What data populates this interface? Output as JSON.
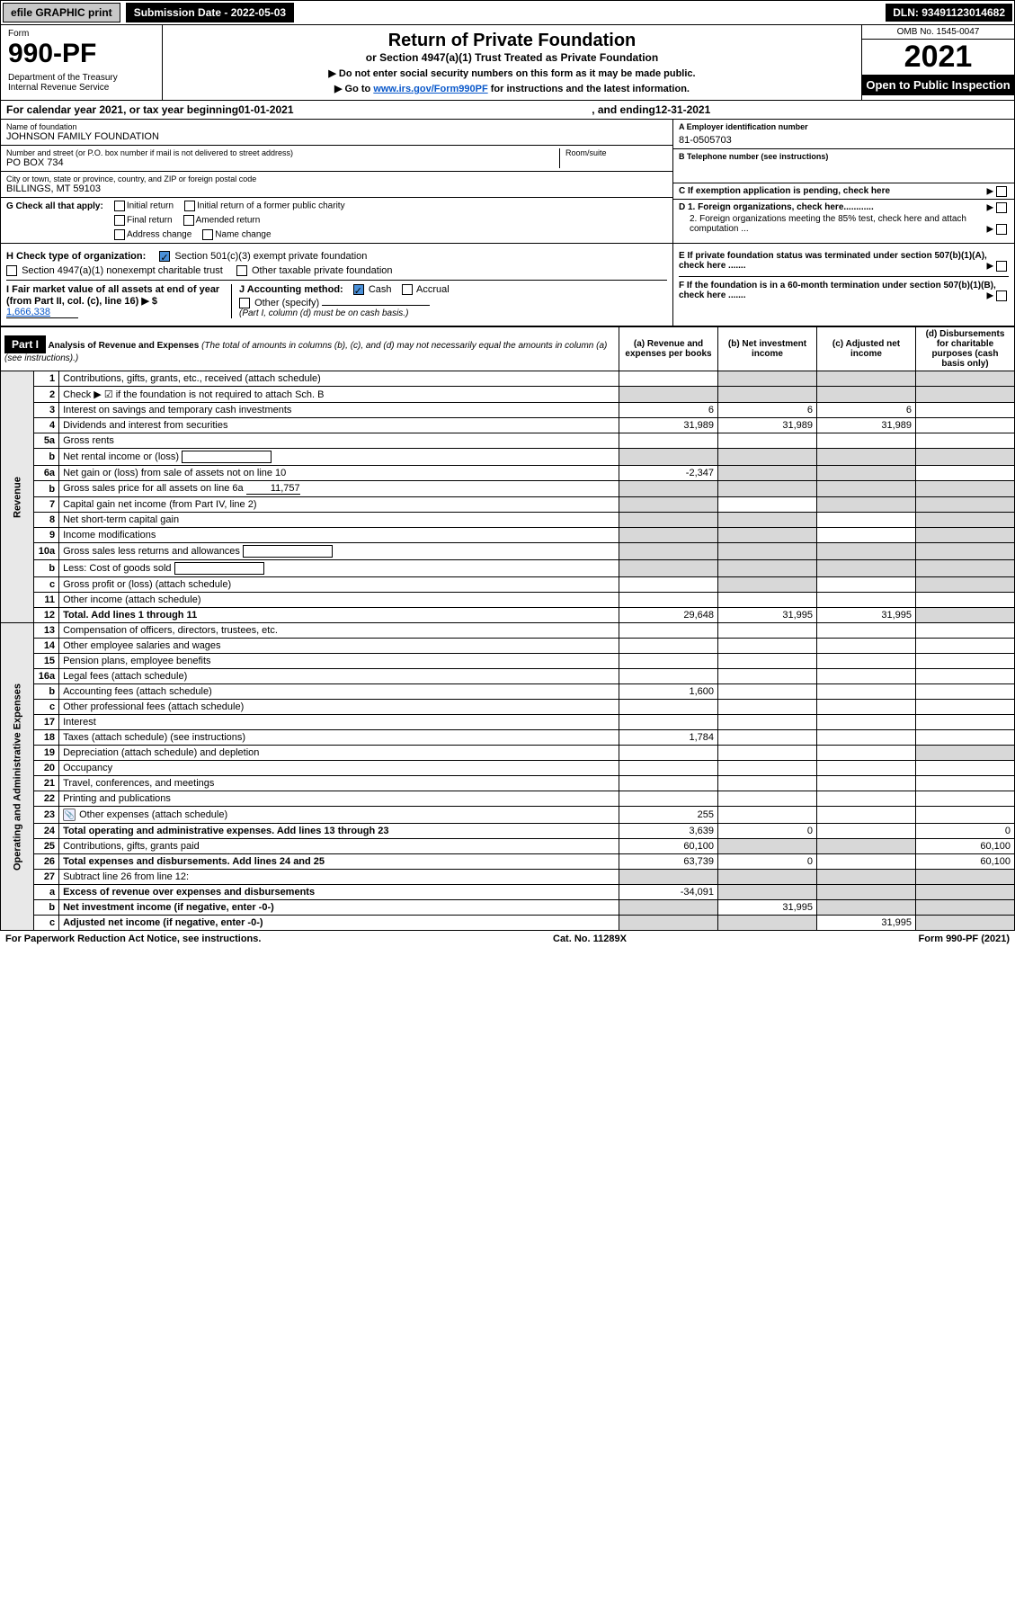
{
  "topbar": {
    "print_label": "efile GRAPHIC print",
    "submission_label": "Submission Date - 2022-05-03",
    "dln": "DLN: 93491123014682"
  },
  "header": {
    "form_word": "Form",
    "form_number": "990-PF",
    "dept": "Department of the Treasury\nInternal Revenue Service",
    "title": "Return of Private Foundation",
    "subtitle": "or Section 4947(a)(1) Trust Treated as Private Foundation",
    "instr1": "▶ Do not enter social security numbers on this form as it may be made public.",
    "instr2_pre": "▶ Go to ",
    "instr2_link": "www.irs.gov/Form990PF",
    "instr2_post": " for instructions and the latest information.",
    "omb": "OMB No. 1545-0047",
    "year": "2021",
    "inspect": "Open to Public Inspection"
  },
  "calendar": {
    "text_pre": "For calendar year 2021, or tax year beginning ",
    "begin": "01-01-2021",
    "text_mid": " , and ending ",
    "end": "12-31-2021"
  },
  "info": {
    "name_lbl": "Name of foundation",
    "name_val": "JOHNSON FAMILY FOUNDATION",
    "addr_lbl": "Number and street (or P.O. box number if mail is not delivered to street address)",
    "addr_val": "PO BOX 734",
    "room_lbl": "Room/suite",
    "city_lbl": "City or town, state or province, country, and ZIP or foreign postal code",
    "city_val": "BILLINGS, MT  59103",
    "a_lbl": "A Employer identification number",
    "a_val": "81-0505703",
    "b_lbl": "B Telephone number (see instructions)",
    "c_lbl": "C If exemption application is pending, check here",
    "d1_lbl": "D 1. Foreign organizations, check here............",
    "d2_lbl": "2. Foreign organizations meeting the 85% test, check here and attach computation ...",
    "e_lbl": "E If private foundation status was terminated under section 507(b)(1)(A), check here .......",
    "f_lbl": "F If the foundation is in a 60-month termination under section 507(b)(1)(B), check here .......",
    "g_lbl": "G Check all that apply:",
    "g_opts": [
      "Initial return",
      "Initial return of a former public charity",
      "Final return",
      "Amended return",
      "Address change",
      "Name change"
    ],
    "h_lbl": "H Check type of organization:",
    "h_opt1": "Section 501(c)(3) exempt private foundation",
    "h_opt2": "Section 4947(a)(1) nonexempt charitable trust",
    "h_opt3": "Other taxable private foundation",
    "i_lbl": "I Fair market value of all assets at end of year (from Part II, col. (c), line 16) ▶ $",
    "i_val": "1,666,338",
    "j_lbl": "J Accounting method:",
    "j_opt1": "Cash",
    "j_opt2": "Accrual",
    "j_opt3": "Other (specify)",
    "j_note": "(Part I, column (d) must be on cash basis.)"
  },
  "part1": {
    "label": "Part I",
    "title": "Analysis of Revenue and Expenses",
    "title_note": "(The total of amounts in columns (b), (c), and (d) may not necessarily equal the amounts in column (a) (see instructions).)",
    "col_a": "(a) Revenue and expenses per books",
    "col_b": "(b) Net investment income",
    "col_c": "(c) Adjusted net income",
    "col_d": "(d) Disbursements for charitable purposes (cash basis only)"
  },
  "side_revenue": "Revenue",
  "side_expenses": "Operating and Administrative Expenses",
  "rows": [
    {
      "n": "1",
      "desc": "Contributions, gifts, grants, etc., received (attach schedule)",
      "a": "",
      "b": "",
      "c": "",
      "d": "",
      "shade_b": true,
      "shade_c": true,
      "shade_d": true
    },
    {
      "n": "2",
      "desc": "Check ▶ ☑ if the foundation is not required to attach Sch. B",
      "a": "",
      "b": "",
      "c": "",
      "d": "",
      "shade_a": true,
      "shade_b": true,
      "shade_c": true,
      "shade_d": true,
      "bold_not": true
    },
    {
      "n": "3",
      "desc": "Interest on savings and temporary cash investments",
      "a": "6",
      "b": "6",
      "c": "6",
      "d": ""
    },
    {
      "n": "4",
      "desc": "Dividends and interest from securities",
      "a": "31,989",
      "b": "31,989",
      "c": "31,989",
      "d": ""
    },
    {
      "n": "5a",
      "desc": "Gross rents",
      "a": "",
      "b": "",
      "c": "",
      "d": ""
    },
    {
      "n": "b",
      "desc": "Net rental income or (loss)",
      "a": "",
      "b": "",
      "c": "",
      "d": "",
      "shade_a": true,
      "shade_b": true,
      "shade_c": true,
      "shade_d": true,
      "inline_box": true
    },
    {
      "n": "6a",
      "desc": "Net gain or (loss) from sale of assets not on line 10",
      "a": "-2,347",
      "b": "",
      "c": "",
      "d": "",
      "shade_b": true,
      "shade_c": true
    },
    {
      "n": "b",
      "desc": "Gross sales price for all assets on line 6a",
      "inline_val": "11,757",
      "a": "",
      "b": "",
      "c": "",
      "d": "",
      "shade_a": true,
      "shade_b": true,
      "shade_c": true,
      "shade_d": true
    },
    {
      "n": "7",
      "desc": "Capital gain net income (from Part IV, line 2)",
      "a": "",
      "b": "",
      "c": "",
      "d": "",
      "shade_a": true,
      "shade_c": true,
      "shade_d": true
    },
    {
      "n": "8",
      "desc": "Net short-term capital gain",
      "a": "",
      "b": "",
      "c": "",
      "d": "",
      "shade_a": true,
      "shade_b": true,
      "shade_d": true
    },
    {
      "n": "9",
      "desc": "Income modifications",
      "a": "",
      "b": "",
      "c": "",
      "d": "",
      "shade_a": true,
      "shade_b": true,
      "shade_d": true
    },
    {
      "n": "10a",
      "desc": "Gross sales less returns and allowances",
      "a": "",
      "b": "",
      "c": "",
      "d": "",
      "shade_a": true,
      "shade_b": true,
      "shade_c": true,
      "shade_d": true,
      "inline_box": true
    },
    {
      "n": "b",
      "desc": "Less: Cost of goods sold",
      "a": "",
      "b": "",
      "c": "",
      "d": "",
      "shade_a": true,
      "shade_b": true,
      "shade_c": true,
      "shade_d": true,
      "inline_box": true
    },
    {
      "n": "c",
      "desc": "Gross profit or (loss) (attach schedule)",
      "a": "",
      "b": "",
      "c": "",
      "d": "",
      "shade_b": true,
      "shade_d": true
    },
    {
      "n": "11",
      "desc": "Other income (attach schedule)",
      "a": "",
      "b": "",
      "c": "",
      "d": ""
    },
    {
      "n": "12",
      "desc": "Total. Add lines 1 through 11",
      "a": "29,648",
      "b": "31,995",
      "c": "31,995",
      "d": "",
      "bold": true,
      "shade_d": true
    },
    {
      "n": "13",
      "desc": "Compensation of officers, directors, trustees, etc.",
      "a": "",
      "b": "",
      "c": "",
      "d": ""
    },
    {
      "n": "14",
      "desc": "Other employee salaries and wages",
      "a": "",
      "b": "",
      "c": "",
      "d": ""
    },
    {
      "n": "15",
      "desc": "Pension plans, employee benefits",
      "a": "",
      "b": "",
      "c": "",
      "d": ""
    },
    {
      "n": "16a",
      "desc": "Legal fees (attach schedule)",
      "a": "",
      "b": "",
      "c": "",
      "d": ""
    },
    {
      "n": "b",
      "desc": "Accounting fees (attach schedule)",
      "a": "1,600",
      "b": "",
      "c": "",
      "d": ""
    },
    {
      "n": "c",
      "desc": "Other professional fees (attach schedule)",
      "a": "",
      "b": "",
      "c": "",
      "d": ""
    },
    {
      "n": "17",
      "desc": "Interest",
      "a": "",
      "b": "",
      "c": "",
      "d": ""
    },
    {
      "n": "18",
      "desc": "Taxes (attach schedule) (see instructions)",
      "a": "1,784",
      "b": "",
      "c": "",
      "d": ""
    },
    {
      "n": "19",
      "desc": "Depreciation (attach schedule) and depletion",
      "a": "",
      "b": "",
      "c": "",
      "d": "",
      "shade_d": true
    },
    {
      "n": "20",
      "desc": "Occupancy",
      "a": "",
      "b": "",
      "c": "",
      "d": ""
    },
    {
      "n": "21",
      "desc": "Travel, conferences, and meetings",
      "a": "",
      "b": "",
      "c": "",
      "d": ""
    },
    {
      "n": "22",
      "desc": "Printing and publications",
      "a": "",
      "b": "",
      "c": "",
      "d": ""
    },
    {
      "n": "23",
      "desc": "Other expenses (attach schedule)",
      "a": "255",
      "b": "",
      "c": "",
      "d": "",
      "icon": true
    },
    {
      "n": "24",
      "desc": "Total operating and administrative expenses. Add lines 13 through 23",
      "a": "3,639",
      "b": "0",
      "c": "",
      "d": "0",
      "bold": true
    },
    {
      "n": "25",
      "desc": "Contributions, gifts, grants paid",
      "a": "60,100",
      "b": "",
      "c": "",
      "d": "60,100",
      "shade_b": true,
      "shade_c": true
    },
    {
      "n": "26",
      "desc": "Total expenses and disbursements. Add lines 24 and 25",
      "a": "63,739",
      "b": "0",
      "c": "",
      "d": "60,100",
      "bold": true
    },
    {
      "n": "27",
      "desc": "Subtract line 26 from line 12:",
      "a": "",
      "b": "",
      "c": "",
      "d": "",
      "shade_a": true,
      "shade_b": true,
      "shade_c": true,
      "shade_d": true
    },
    {
      "n": "a",
      "desc": "Excess of revenue over expenses and disbursements",
      "a": "-34,091",
      "b": "",
      "c": "",
      "d": "",
      "bold": true,
      "shade_b": true,
      "shade_c": true,
      "shade_d": true
    },
    {
      "n": "b",
      "desc": "Net investment income (if negative, enter -0-)",
      "a": "",
      "b": "31,995",
      "c": "",
      "d": "",
      "bold": true,
      "shade_a": true,
      "shade_c": true,
      "shade_d": true
    },
    {
      "n": "c",
      "desc": "Adjusted net income (if negative, enter -0-)",
      "a": "",
      "b": "",
      "c": "31,995",
      "d": "",
      "bold": true,
      "shade_a": true,
      "shade_b": true,
      "shade_d": true
    }
  ],
  "footer": {
    "left": "For Paperwork Reduction Act Notice, see instructions.",
    "mid": "Cat. No. 11289X",
    "right": "Form 990-PF (2021)"
  },
  "colors": {
    "shade": "#d8d8d8",
    "link": "#0a58ca",
    "check": "#4a90d9"
  }
}
